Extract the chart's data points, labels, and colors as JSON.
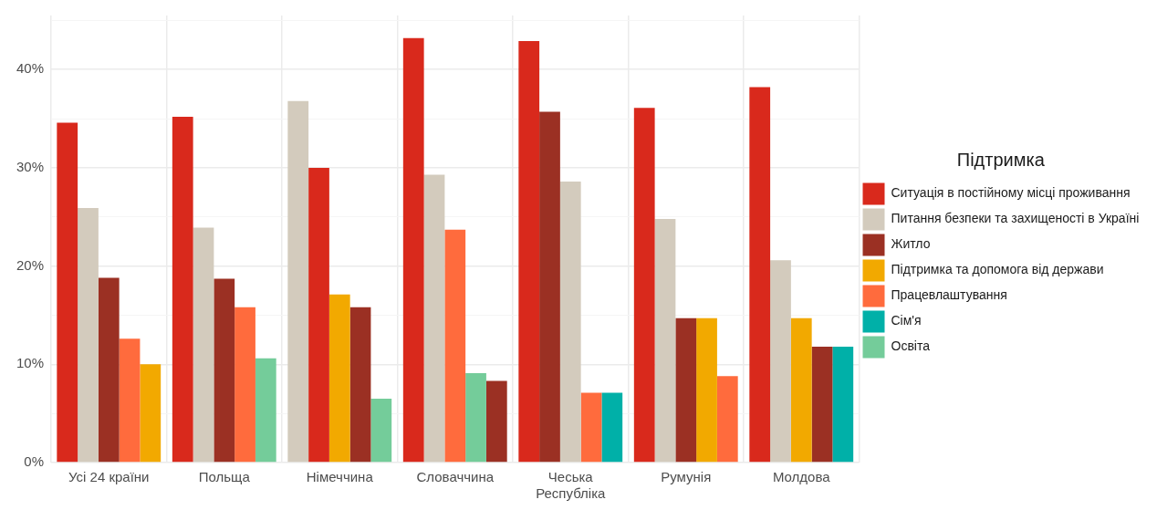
{
  "chart_data": {
    "type": "bar",
    "legend_title": "Підтримка",
    "legend": "right",
    "grid": true,
    "categories": [
      "Усі 24 країни",
      "Польща",
      "Німеччина",
      "Словаччина",
      "Чеська Республіка",
      "Румунія",
      "Молдова"
    ],
    "ylim": [
      0,
      45.5
    ],
    "yticks": [
      {
        "value": 0,
        "label": "0%"
      },
      {
        "value": 5,
        "label": null
      },
      {
        "value": 10,
        "label": "10%"
      },
      {
        "value": 15,
        "label": null
      },
      {
        "value": 20,
        "label": "20%"
      },
      {
        "value": 25,
        "label": null
      },
      {
        "value": 30,
        "label": "30%"
      },
      {
        "value": 35,
        "label": null
      },
      {
        "value": 40,
        "label": "40%"
      },
      {
        "value": 45,
        "label": null
      }
    ],
    "series": [
      {
        "name": "Ситуація в постійному місці проживання",
        "color": "#d9291c",
        "values": [
          34.6,
          35.2,
          30.0,
          43.2,
          42.9,
          36.1,
          38.2
        ]
      },
      {
        "name": "Питання безпеки та захищеності в Україні",
        "color": "#d3cbbd",
        "values": [
          25.9,
          23.9,
          36.8,
          29.3,
          28.6,
          24.8,
          20.6
        ]
      },
      {
        "name": "Житло",
        "color": "#9b3023",
        "values": [
          18.8,
          18.7,
          15.8,
          8.3,
          35.7,
          14.7,
          11.8
        ]
      },
      {
        "name": "Підтримка та допомога від держави",
        "color": "#f2a900",
        "values": [
          10.0,
          null,
          17.1,
          null,
          null,
          14.7,
          14.7
        ]
      },
      {
        "name": "Працевлаштування",
        "color": "#ff6b3d",
        "values": [
          12.6,
          15.8,
          null,
          23.7,
          7.1,
          8.8,
          null
        ]
      },
      {
        "name": "Сім'я",
        "color": "#00b0a8",
        "values": [
          null,
          null,
          null,
          null,
          7.1,
          null,
          11.8
        ]
      },
      {
        "name": "Освіта",
        "color": "#74cc9a",
        "values": [
          null,
          10.6,
          6.5,
          9.1,
          null,
          null,
          null
        ]
      }
    ]
  }
}
